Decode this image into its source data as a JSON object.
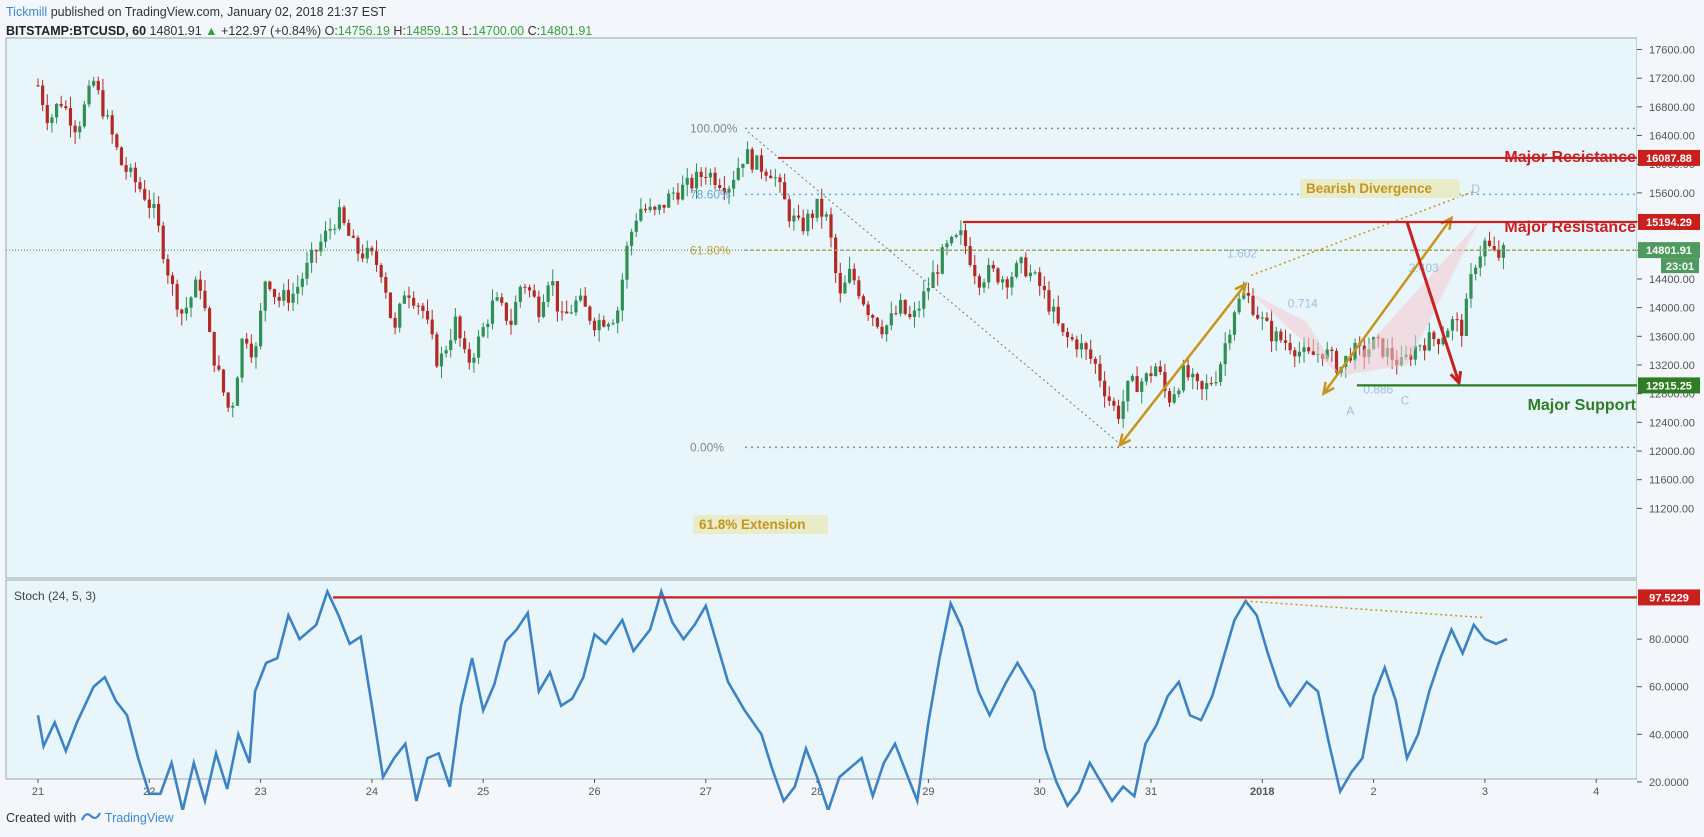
{
  "header": {
    "publisher": "Tickmill",
    "published_on": "published on TradingView.com, January 02, 2018 21:37 EST",
    "symbol": "BITSTAMP:BTCUSD, 60",
    "last": "14801.91",
    "change_arrow": "▲",
    "change": "+122.97 (+0.84%)",
    "o_label": "O:",
    "o": "14756.19",
    "h_label": "H:",
    "h": "14859.13",
    "l_label": "L:",
    "l": "14700.00",
    "c_label": "C:",
    "c": "14801.91"
  },
  "footer": {
    "created_with": "Created with",
    "brand": "TradingView"
  },
  "colors": {
    "bg": "#e8f6fb",
    "up": "#2f8f54",
    "down": "#b32a24",
    "resistance": "#cc1f1f",
    "support": "#2e7d22",
    "gold": "#c8941c",
    "stoch": "#3b83c5",
    "axis": "#555555"
  },
  "chart_data": [
    {
      "type": "candlestick",
      "symbol": "BITSTAMP:BTCUSD",
      "timeframe": "60",
      "x_ticks": [
        "21",
        "22",
        "23",
        "24",
        "25",
        "26",
        "27",
        "28",
        "29",
        "30",
        "31",
        "2018",
        "2",
        "3",
        "4"
      ],
      "y_ticks": [
        "17600.00",
        "17200.00",
        "16800.00",
        "16400.00",
        "16000.00",
        "15600.00",
        "15200.00",
        "14800.00",
        "14400.00",
        "14000.00",
        "13600.00",
        "13200.00",
        "12800.00",
        "12400.00",
        "12000.00",
        "11600.00",
        "11200.00"
      ],
      "ylim": [
        11000,
        17700
      ],
      "price_path": [
        [
          21.0,
          17100
        ],
        [
          21.1,
          16600
        ],
        [
          21.2,
          16900
        ],
        [
          21.35,
          16500
        ],
        [
          21.5,
          17150
        ],
        [
          21.6,
          16700
        ],
        [
          21.75,
          16000
        ],
        [
          21.95,
          15600
        ],
        [
          22.05,
          15300
        ],
        [
          22.2,
          14300
        ],
        [
          22.3,
          13900
        ],
        [
          22.45,
          14400
        ],
        [
          22.55,
          13500
        ],
        [
          22.65,
          12900
        ],
        [
          22.73,
          12500
        ],
        [
          22.85,
          13700
        ],
        [
          22.95,
          13300
        ],
        [
          23.05,
          14500
        ],
        [
          23.15,
          14100
        ],
        [
          23.3,
          14200
        ],
        [
          23.5,
          14800
        ],
        [
          23.7,
          15300
        ],
        [
          23.85,
          14800
        ],
        [
          24.0,
          14700
        ],
        [
          24.1,
          14500
        ],
        [
          24.2,
          13600
        ],
        [
          24.3,
          14300
        ],
        [
          24.45,
          14000
        ],
        [
          24.6,
          13200
        ],
        [
          24.75,
          13800
        ],
        [
          24.85,
          13200
        ],
        [
          24.95,
          13500
        ],
        [
          25.1,
          14100
        ],
        [
          25.25,
          13800
        ],
        [
          25.35,
          14400
        ],
        [
          25.5,
          14000
        ],
        [
          25.6,
          14500
        ],
        [
          25.7,
          13800
        ],
        [
          25.85,
          14100
        ],
        [
          26.0,
          13800
        ],
        [
          26.2,
          13900
        ],
        [
          26.3,
          14900
        ],
        [
          26.4,
          15400
        ],
        [
          26.55,
          15300
        ],
        [
          26.7,
          15600
        ],
        [
          26.85,
          15700
        ],
        [
          27.0,
          15900
        ],
        [
          27.2,
          15700
        ],
        [
          27.35,
          16150
        ],
        [
          27.45,
          16000
        ],
        [
          27.6,
          15900
        ],
        [
          27.75,
          15300
        ],
        [
          27.85,
          15100
        ],
        [
          28.0,
          15400
        ],
        [
          28.1,
          15200
        ],
        [
          28.2,
          14100
        ],
        [
          28.3,
          14500
        ],
        [
          28.45,
          14000
        ],
        [
          28.6,
          13700
        ],
        [
          28.75,
          14000
        ],
        [
          28.85,
          13800
        ],
        [
          29.0,
          14300
        ],
        [
          29.15,
          14800
        ],
        [
          29.3,
          15000
        ],
        [
          29.45,
          14400
        ],
        [
          29.55,
          14500
        ],
        [
          29.7,
          14400
        ],
        [
          29.85,
          14600
        ],
        [
          30.0,
          14300
        ],
        [
          30.1,
          14000
        ],
        [
          30.2,
          13600
        ],
        [
          30.35,
          13500
        ],
        [
          30.5,
          13200
        ],
        [
          30.6,
          12800
        ],
        [
          30.7,
          12500
        ],
        [
          30.8,
          12900
        ],
        [
          30.95,
          13000
        ],
        [
          31.05,
          13200
        ],
        [
          31.15,
          12700
        ],
        [
          31.3,
          13100
        ],
        [
          31.45,
          12800
        ],
        [
          31.6,
          13100
        ],
        [
          31.75,
          14000
        ],
        [
          31.85,
          14200
        ],
        [
          32.0,
          13800
        ],
        [
          32.1,
          13600
        ],
        [
          32.25,
          13500
        ],
        [
          32.4,
          13300
        ],
        [
          32.55,
          13400
        ],
        [
          32.7,
          13150
        ],
        [
          32.8,
          13400
        ],
        [
          32.9,
          13350
        ],
        [
          33.0,
          13500
        ],
        [
          33.1,
          13400
        ],
        [
          33.25,
          13200
        ],
        [
          33.4,
          13500
        ],
        [
          33.5,
          13550
        ],
        [
          33.6,
          13600
        ],
        [
          33.7,
          13800
        ],
        [
          33.8,
          13700
        ],
        [
          33.9,
          14600
        ],
        [
          34.0,
          14900
        ],
        [
          34.1,
          14700
        ],
        [
          34.2,
          14800
        ]
      ]
    },
    {
      "type": "line",
      "title": "Stoch (24, 5, 3)",
      "y_ticks": [
        "80.0000",
        "60.0000",
        "40.0000",
        "20.0000"
      ],
      "ylim": [
        3,
        102
      ],
      "series": [
        {
          "values_x_y": [
            [
              21.0,
              48
            ],
            [
              21.05,
              35
            ],
            [
              21.15,
              45
            ],
            [
              21.25,
              33
            ],
            [
              21.35,
              45
            ],
            [
              21.5,
              60
            ],
            [
              21.6,
              64
            ],
            [
              21.7,
              54
            ],
            [
              21.8,
              48
            ],
            [
              21.9,
              30
            ],
            [
              22.0,
              15
            ],
            [
              22.1,
              15
            ],
            [
              22.2,
              28
            ],
            [
              22.3,
              8
            ],
            [
              22.4,
              28
            ],
            [
              22.5,
              12
            ],
            [
              22.6,
              32
            ],
            [
              22.7,
              17
            ],
            [
              22.8,
              40
            ],
            [
              22.9,
              28
            ],
            [
              22.95,
              58
            ],
            [
              23.05,
              70
            ],
            [
              23.15,
              72
            ],
            [
              23.25,
              90
            ],
            [
              23.35,
              80
            ],
            [
              23.5,
              86
            ],
            [
              23.6,
              100
            ],
            [
              23.7,
              90
            ],
            [
              23.8,
              78
            ],
            [
              23.9,
              81
            ],
            [
              24.0,
              52
            ],
            [
              24.1,
              22
            ],
            [
              24.2,
              30
            ],
            [
              24.3,
              36
            ],
            [
              24.4,
              12
            ],
            [
              24.5,
              30
            ],
            [
              24.6,
              32
            ],
            [
              24.7,
              18
            ],
            [
              24.8,
              52
            ],
            [
              24.9,
              72
            ],
            [
              25.0,
              50
            ],
            [
              25.1,
              61
            ],
            [
              25.2,
              79
            ],
            [
              25.3,
              84
            ],
            [
              25.4,
              91
            ],
            [
              25.5,
              58
            ],
            [
              25.6,
              66
            ],
            [
              25.7,
              52
            ],
            [
              25.8,
              55
            ],
            [
              25.9,
              64
            ],
            [
              26.0,
              82
            ],
            [
              26.1,
              78
            ],
            [
              26.25,
              88
            ],
            [
              26.35,
              75
            ],
            [
              26.5,
              84
            ],
            [
              26.6,
              100
            ],
            [
              26.7,
              87
            ],
            [
              26.8,
              80
            ],
            [
              26.9,
              86
            ],
            [
              27.0,
              94
            ],
            [
              27.1,
              78
            ],
            [
              27.2,
              62
            ],
            [
              27.35,
              50
            ],
            [
              27.5,
              40
            ],
            [
              27.6,
              25
            ],
            [
              27.7,
              12
            ],
            [
              27.8,
              18
            ],
            [
              27.9,
              34
            ],
            [
              28.0,
              22
            ],
            [
              28.1,
              8
            ],
            [
              28.2,
              22
            ],
            [
              28.3,
              26
            ],
            [
              28.4,
              30
            ],
            [
              28.5,
              14
            ],
            [
              28.6,
              28
            ],
            [
              28.7,
              36
            ],
            [
              28.8,
              24
            ],
            [
              28.9,
              12
            ],
            [
              29.0,
              45
            ],
            [
              29.1,
              72
            ],
            [
              29.2,
              95
            ],
            [
              29.3,
              85
            ],
            [
              29.45,
              58
            ],
            [
              29.55,
              48
            ],
            [
              29.7,
              62
            ],
            [
              29.8,
              70
            ],
            [
              29.95,
              58
            ],
            [
              30.05,
              34
            ],
            [
              30.15,
              20
            ],
            [
              30.25,
              10
            ],
            [
              30.35,
              16
            ],
            [
              30.45,
              28
            ],
            [
              30.55,
              20
            ],
            [
              30.65,
              12
            ],
            [
              30.75,
              18
            ],
            [
              30.85,
              14
            ],
            [
              30.95,
              36
            ],
            [
              31.05,
              44
            ],
            [
              31.15,
              56
            ],
            [
              31.25,
              62
            ],
            [
              31.35,
              48
            ],
            [
              31.45,
              46
            ],
            [
              31.55,
              56
            ],
            [
              31.65,
              72
            ],
            [
              31.75,
              88
            ],
            [
              31.85,
              96
            ],
            [
              31.95,
              90
            ],
            [
              32.05,
              74
            ],
            [
              32.15,
              60
            ],
            [
              32.25,
              52
            ],
            [
              32.4,
              62
            ],
            [
              32.5,
              58
            ],
            [
              32.6,
              36
            ],
            [
              32.7,
              16
            ],
            [
              32.8,
              24
            ],
            [
              32.9,
              30
            ],
            [
              33.0,
              56
            ],
            [
              33.1,
              68
            ],
            [
              33.2,
              54
            ],
            [
              33.3,
              30
            ],
            [
              33.4,
              40
            ],
            [
              33.5,
              58
            ],
            [
              33.6,
              72
            ],
            [
              33.7,
              84
            ],
            [
              33.8,
              74
            ],
            [
              33.9,
              86
            ],
            [
              34.0,
              80
            ],
            [
              34.1,
              78
            ],
            [
              34.2,
              80
            ]
          ]
        }
      ]
    }
  ],
  "annotations": {
    "fib_100": "100.00%",
    "fib_786": "78.60%",
    "fib_618": "61.80%",
    "fib_0": "0.00%",
    "extension": "61.8% Extension",
    "bearish_divergence": "Bearish Divergence",
    "major_resistance_1": "Major Resistance",
    "major_resistance_2": "Major Resistance",
    "major_support": "Major Support",
    "level_resistance_1": "16087.88",
    "level_resistance_2": "15194.29",
    "level_current": "14801.91",
    "countdown": "23:01",
    "level_support": "12915.25",
    "stoch_level": "97.5229",
    "pattern_1602": "1.602",
    "pattern_0714": "0.714",
    "pattern_2403": "2.403",
    "pattern_0886": "0.886",
    "point_a": "A",
    "point_c": "C",
    "point_d": "D"
  }
}
